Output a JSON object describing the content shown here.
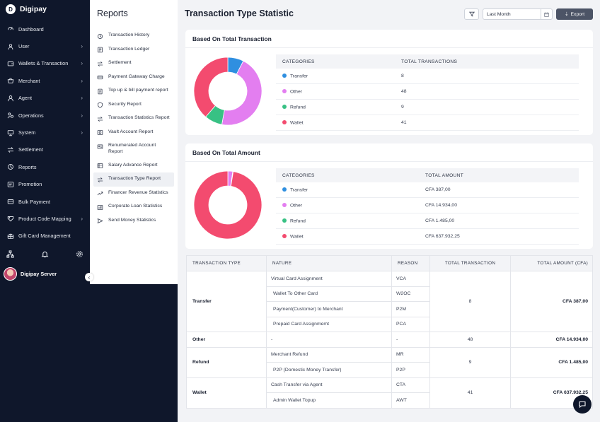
{
  "brand": {
    "name": "Digipay",
    "logo_letter": "D"
  },
  "sidebar": {
    "items": [
      {
        "label": "Dashboard",
        "icon": "dashboard-icon",
        "chevron": false
      },
      {
        "label": "User",
        "icon": "user-icon",
        "chevron": true
      },
      {
        "label": "Wallets & Transaction",
        "icon": "wallet-icon",
        "chevron": true
      },
      {
        "label": "Merchant",
        "icon": "merchant-icon",
        "chevron": true
      },
      {
        "label": "Agent",
        "icon": "agent-icon",
        "chevron": true
      },
      {
        "label": "Operations",
        "icon": "operations-icon",
        "chevron": true
      },
      {
        "label": "System",
        "icon": "system-icon",
        "chevron": true
      },
      {
        "label": "Settlement",
        "icon": "settlement-icon",
        "chevron": false
      },
      {
        "label": "Reports",
        "icon": "reports-icon",
        "chevron": false
      },
      {
        "label": "Promotion",
        "icon": "promotion-icon",
        "chevron": false
      },
      {
        "label": "Bulk Payment",
        "icon": "bulk-payment-icon",
        "chevron": false
      },
      {
        "label": "Product Code Mapping",
        "icon": "product-code-icon",
        "chevron": true
      },
      {
        "label": "Gift Card Management",
        "icon": "gift-card-icon",
        "chevron": false
      }
    ],
    "chevron_glyph": "›",
    "user_name": "Digipay Server",
    "collapse_glyph": "‹"
  },
  "reports_menu": {
    "title": "Reports",
    "items": [
      {
        "label": "Transaction History",
        "icon": "history-icon"
      },
      {
        "label": "Transaction Ledger",
        "icon": "ledger-icon"
      },
      {
        "label": "Settlement",
        "icon": "settlement-icon"
      },
      {
        "label": "Payment Gateway Charge",
        "icon": "gateway-icon"
      },
      {
        "label": "Top up & bill payment report",
        "icon": "topup-icon"
      },
      {
        "label": "Security Report",
        "icon": "shield-icon"
      },
      {
        "label": "Transaction Statistics Report",
        "icon": "transfer-arrows-icon"
      },
      {
        "label": "Vault Account Report",
        "icon": "vault-icon"
      },
      {
        "label": "Renumerated Account Report",
        "icon": "account-icon"
      },
      {
        "label": "Salary Advance Report",
        "icon": "salary-icon"
      },
      {
        "label": "Transaction Type Report",
        "icon": "transfer-arrows-icon",
        "active": true
      },
      {
        "label": "Financer Revenue Statistics",
        "icon": "revenue-icon"
      },
      {
        "label": "Corporate Loan Statistics",
        "icon": "loan-icon"
      },
      {
        "label": "Send Money Statistics",
        "icon": "send-icon"
      }
    ]
  },
  "header": {
    "title": "Transaction Type Statistic",
    "date_filter_value": "Last Month",
    "export_label": "Export",
    "export_glyph": "⇣"
  },
  "colors": {
    "Transfer": "#2f8fe0",
    "Other": "#e37ef0",
    "Refund": "#38c184",
    "Wallet": "#f34b6f"
  },
  "total_transaction_card": {
    "title": "Based On Total Transaction",
    "col_categories": "CATEGORIES",
    "col_value": "TOTAL TRANSACTIONS",
    "rows": [
      {
        "category": "Transfer",
        "value": "8"
      },
      {
        "category": "Other",
        "value": "48"
      },
      {
        "category": "Refund",
        "value": "9"
      },
      {
        "category": "Wallet",
        "value": "41"
      }
    ]
  },
  "total_amount_card": {
    "title": "Based On Total Amount",
    "col_categories": "CATEGORIES",
    "col_value": "TOTAL AMOUNT",
    "rows": [
      {
        "category": "Transfer",
        "value": "CFA 387,00"
      },
      {
        "category": "Other",
        "value": "CFA 14.934,00"
      },
      {
        "category": "Refund",
        "value": "CFA 1.485,00"
      },
      {
        "category": "Wallet",
        "value": "CFA 637.932,25"
      }
    ]
  },
  "chart_data": [
    {
      "type": "pie",
      "categories": [
        "Transfer",
        "Other",
        "Refund",
        "Wallet"
      ],
      "values": [
        8,
        48,
        9,
        41
      ],
      "title": ""
    },
    {
      "type": "pie",
      "categories": [
        "Transfer",
        "Other",
        "Refund",
        "Wallet"
      ],
      "values": [
        387.0,
        14934.0,
        1485.0,
        637932.25
      ],
      "title": ""
    }
  ],
  "detail_table": {
    "headers": [
      "TRANSACTION TYPE",
      "NATURE",
      "REASON",
      "TOTAL TRANSACTION",
      "TOTAL AMOUNT (CFA)"
    ],
    "groups": [
      {
        "type": "Transfer",
        "total": "8",
        "amount": "CFA 387,00",
        "rows": [
          {
            "nature": "Virtual Card Assignment",
            "reason": "VCA"
          },
          {
            "nature": "Wallet To Other Card",
            "reason": "W2OC"
          },
          {
            "nature": "Payment(Customer) to Merchant",
            "reason": "P2M"
          },
          {
            "nature": "Prepaid Card Assignmemt",
            "reason": "PCA"
          }
        ]
      },
      {
        "type": "Other",
        "total": "48",
        "amount": "CFA 14.934,00",
        "rows": [
          {
            "nature": "-",
            "reason": "-"
          }
        ]
      },
      {
        "type": "Refund",
        "total": "9",
        "amount": "CFA 1.485,00",
        "rows": [
          {
            "nature": "Merchant Refund",
            "reason": "MR"
          },
          {
            "nature": "P2P (Domestic Money Transfer)",
            "reason": "P2P"
          }
        ]
      },
      {
        "type": "Wallet",
        "total": "41",
        "amount": "CFA 637.932,25",
        "rows": [
          {
            "nature": "Cash Transfer via Agent",
            "reason": "CTA"
          },
          {
            "nature": "Admin Wallet Topup",
            "reason": "AWT"
          }
        ]
      }
    ]
  }
}
